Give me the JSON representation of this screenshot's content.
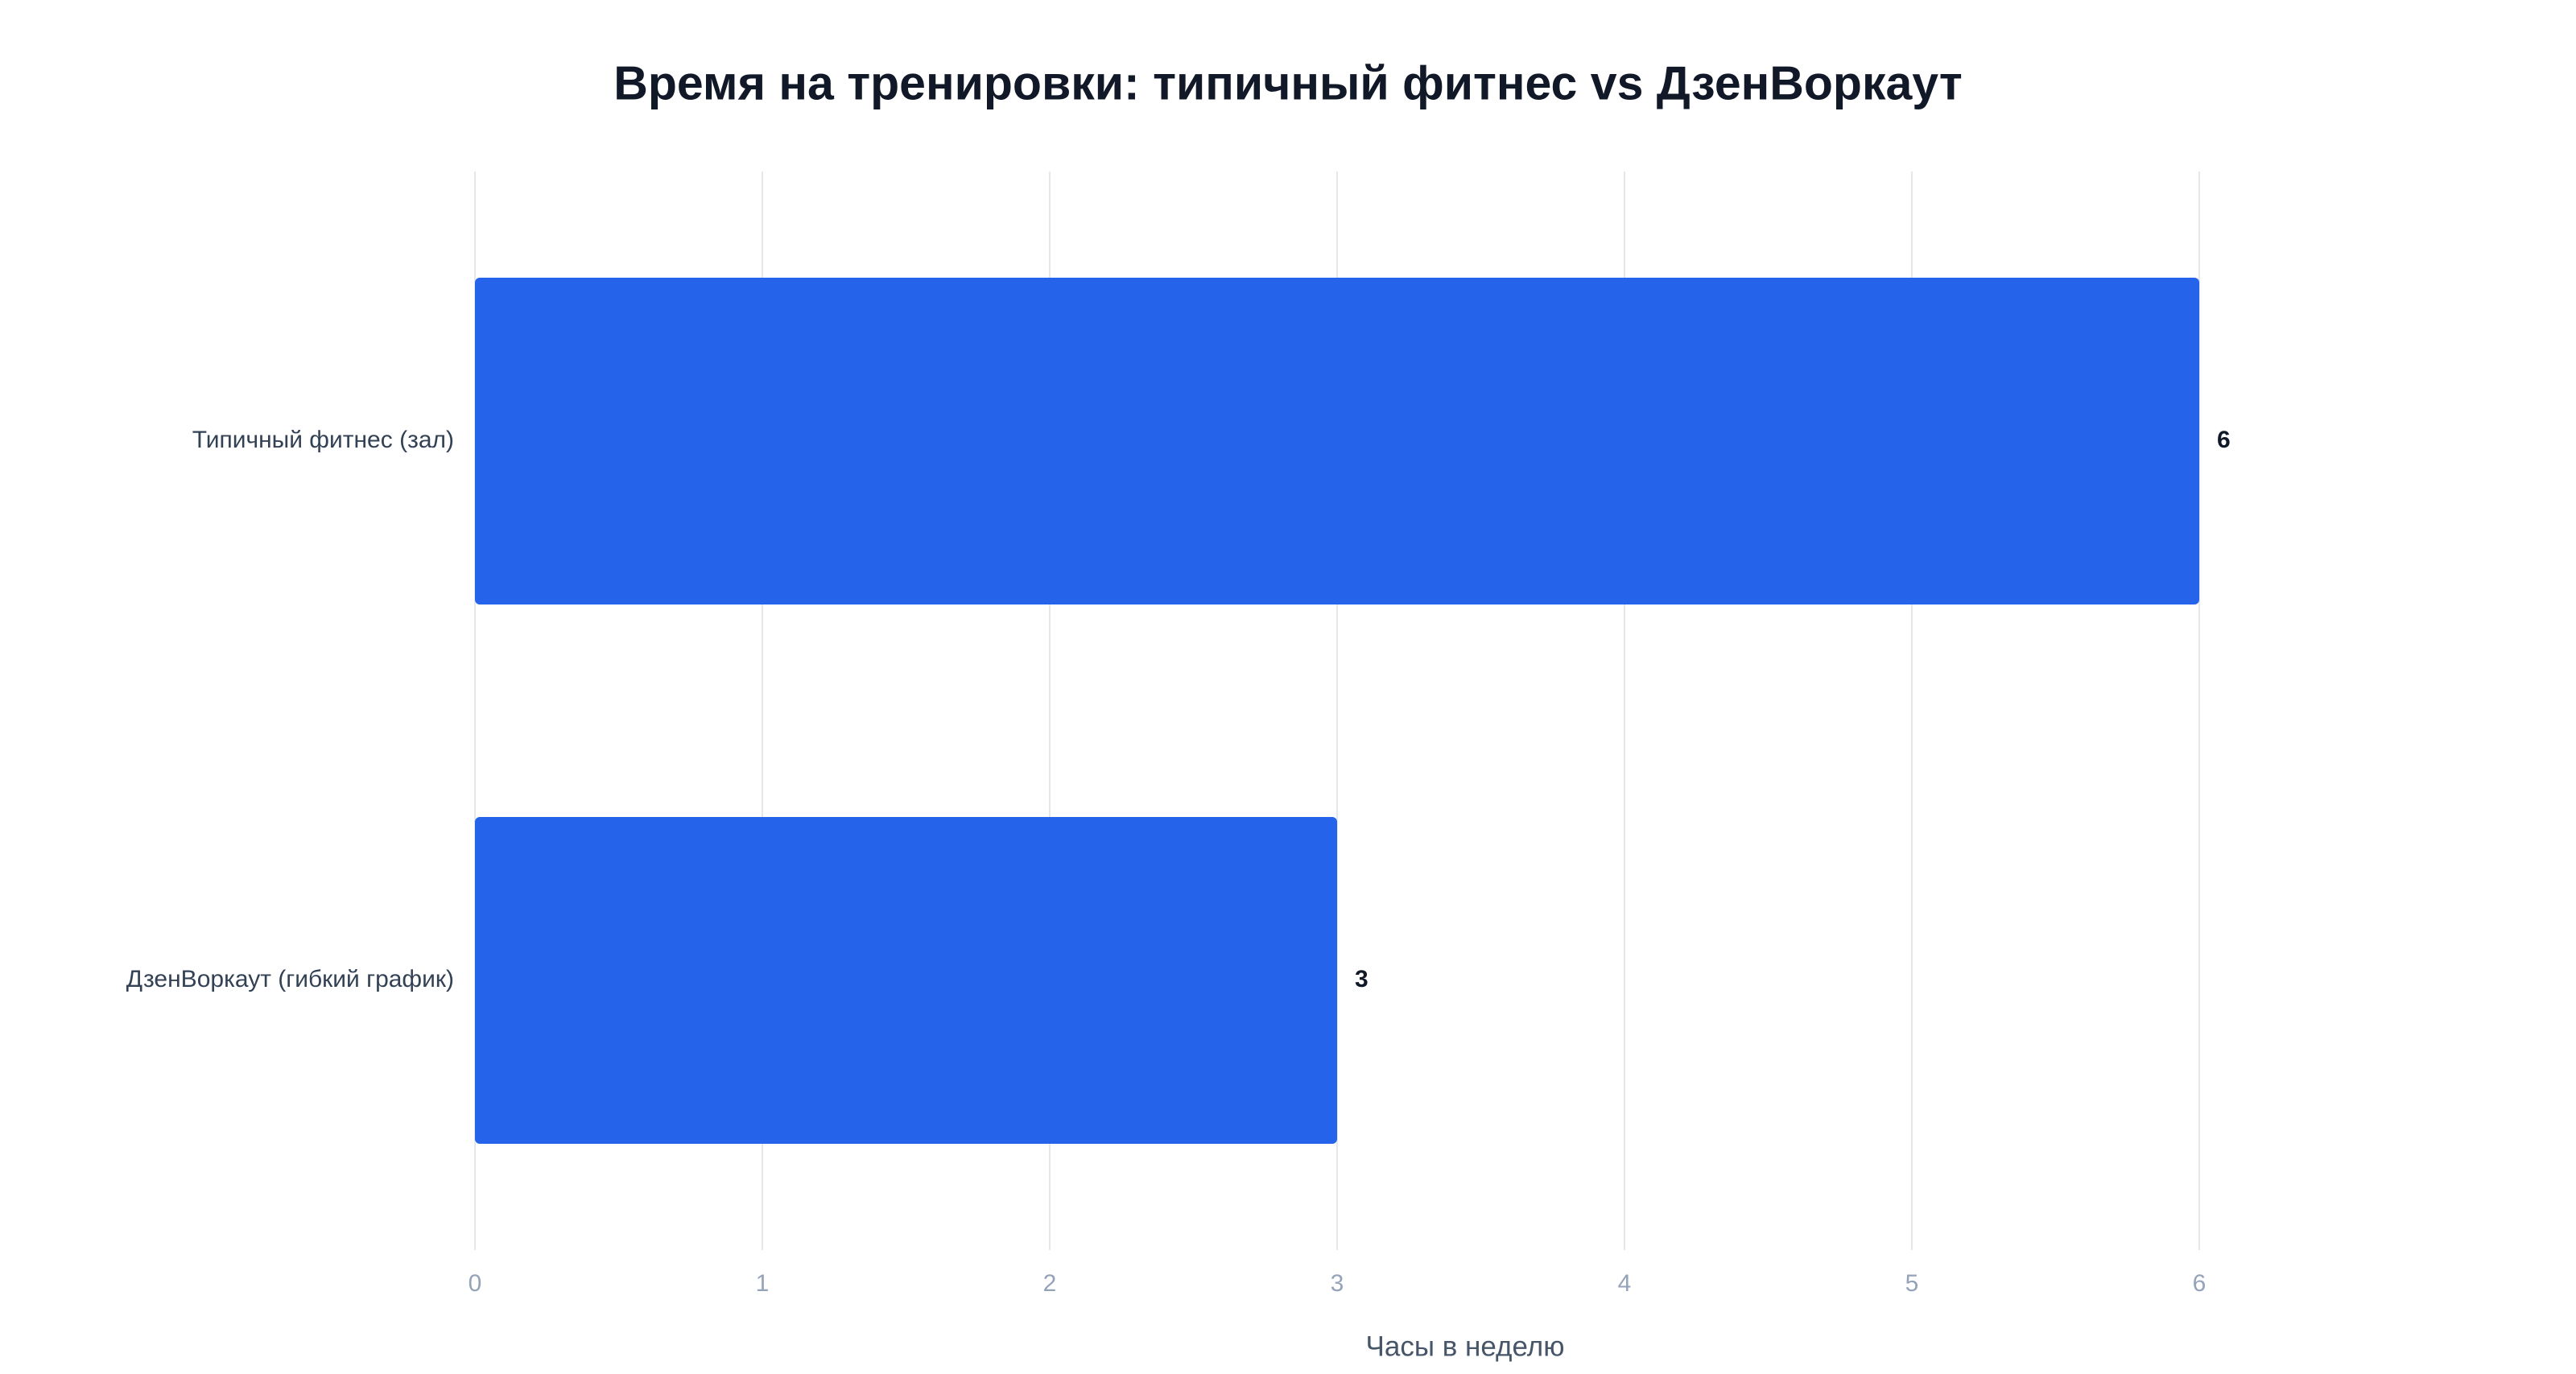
{
  "chart_data": {
    "type": "bar",
    "orientation": "horizontal",
    "title": "Время на тренировки: типичный фитнес vs ДзенВоркаут",
    "categories": [
      "Типичный фитнес (зал)",
      "ДзенВоркаут (гибкий график)"
    ],
    "values": [
      6,
      3
    ],
    "data_labels": [
      "6",
      "3"
    ],
    "xlabel": "Часы в неделю",
    "ylabel": "",
    "xlim": [
      0,
      6
    ],
    "x_ticks": [
      0,
      1,
      2,
      3,
      4,
      5,
      6
    ],
    "grid": true,
    "legend": "none"
  },
  "colors": {
    "bar": "#2563eb",
    "grid": "#e5e7eb",
    "title": "#111827",
    "category_label": "#334155",
    "tick_label": "#94a3b8",
    "value_label": "#111827",
    "axis_title": "#475569"
  }
}
